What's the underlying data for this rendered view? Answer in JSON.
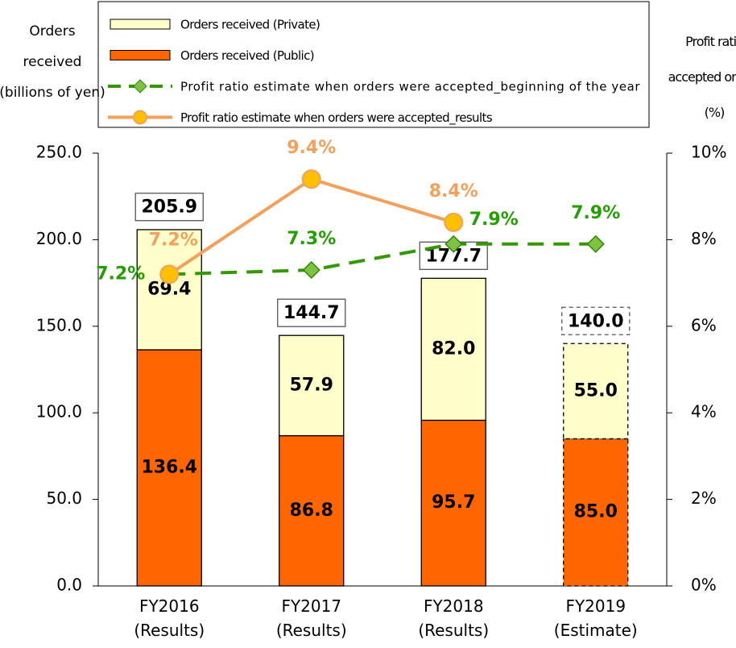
{
  "chart_data": {
    "type": "bar",
    "ylabel": "Orders\nreceived\n(billions of yen)",
    "y2label": "Profit ratio\naccepted orders\n(%)",
    "categories": [
      "FY2016\n(Results)",
      "FY2017\n(Results)",
      "FY2018\n(Results)",
      "FY2019\n(Estimate)"
    ],
    "dashed": [
      false,
      false,
      false,
      true
    ],
    "series": [
      {
        "name": "Orders received (Private)",
        "color": "#ffffcc",
        "type": "bar",
        "values": [
          69.4,
          57.9,
          82.0,
          55.0
        ],
        "value_labels": [
          "69.4",
          "57.9",
          "82.0",
          "55.0"
        ]
      },
      {
        "name": "Orders received (Public)",
        "color": "#ff6600",
        "type": "bar",
        "values": [
          136.4,
          86.8,
          95.7,
          85.0
        ],
        "value_labels": [
          "136.4",
          "86.8",
          "95.7",
          "85.0"
        ]
      },
      {
        "name": "Profit ratio estimate when orders were accepted_beginning of the year",
        "color": "#339900",
        "type": "line",
        "axis": "y2",
        "values": [
          7.2,
          7.3,
          7.9,
          7.9
        ],
        "value_labels": [
          "7.2%",
          "7.3%",
          "7.9%",
          "7.9%"
        ]
      },
      {
        "name": "Profit ratio estimate when orders were accepted_results",
        "color": "#f5a05a",
        "type": "line",
        "axis": "y2",
        "values": [
          7.2,
          9.4,
          8.4,
          null
        ],
        "value_labels": [
          "7.2%",
          "9.4%",
          "8.4%",
          null
        ]
      }
    ],
    "totals": [
      205.9,
      144.7,
      177.7,
      140.0
    ],
    "total_labels": [
      "205.9",
      "144.7",
      "177.7",
      "140.0"
    ],
    "ylim": [
      0,
      250
    ],
    "yticks": [
      {
        "value": 0,
        "label": "0.0"
      },
      {
        "value": 50,
        "label": "50.0"
      },
      {
        "value": 100,
        "label": "100.0"
      },
      {
        "value": 150,
        "label": "150.0"
      },
      {
        "value": 200,
        "label": "200.0"
      },
      {
        "value": 250,
        "label": "250.0"
      }
    ],
    "y2lim": [
      0,
      10
    ],
    "y2ticks": [
      {
        "value": 0,
        "label": "0%"
      },
      {
        "value": 2,
        "label": "2%"
      },
      {
        "value": 4,
        "label": "4%"
      },
      {
        "value": 6,
        "label": "6%"
      },
      {
        "value": 8,
        "label": "8%"
      },
      {
        "value": 10,
        "label": "10%"
      }
    ],
    "legend": "top"
  }
}
